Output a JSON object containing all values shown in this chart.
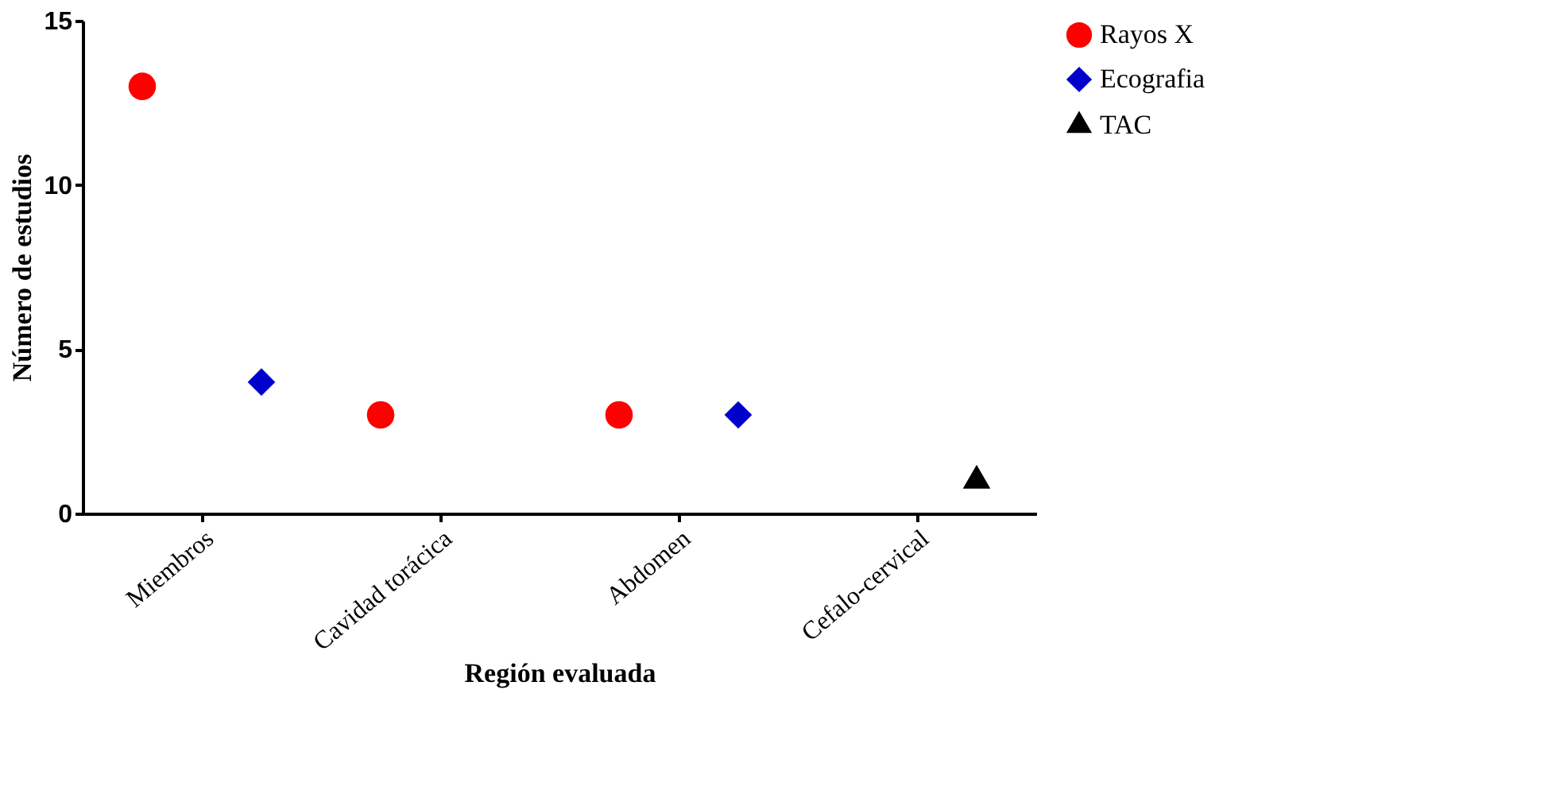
{
  "chart_data": {
    "type": "scatter",
    "xlabel": "Región evaluada",
    "ylabel": "Número de estudios",
    "categories": [
      "Miembros",
      "Cavidad torácica",
      "Abdomen",
      "Cefalo-cervical"
    ],
    "series": [
      {
        "name": "Rayos X",
        "color": "#ff0000",
        "marker": "circle",
        "values": [
          13,
          3,
          3,
          null
        ]
      },
      {
        "name": "Ecografia",
        "color": "#0000cc",
        "marker": "diamond",
        "values": [
          4,
          null,
          3,
          null
        ]
      },
      {
        "name": "TAC",
        "color": "#000000",
        "marker": "triangle",
        "values": [
          null,
          null,
          null,
          1
        ]
      }
    ],
    "ylim": [
      0,
      15
    ],
    "yticks": [
      0,
      5,
      10,
      15
    ],
    "grid": false,
    "legend": "right"
  }
}
